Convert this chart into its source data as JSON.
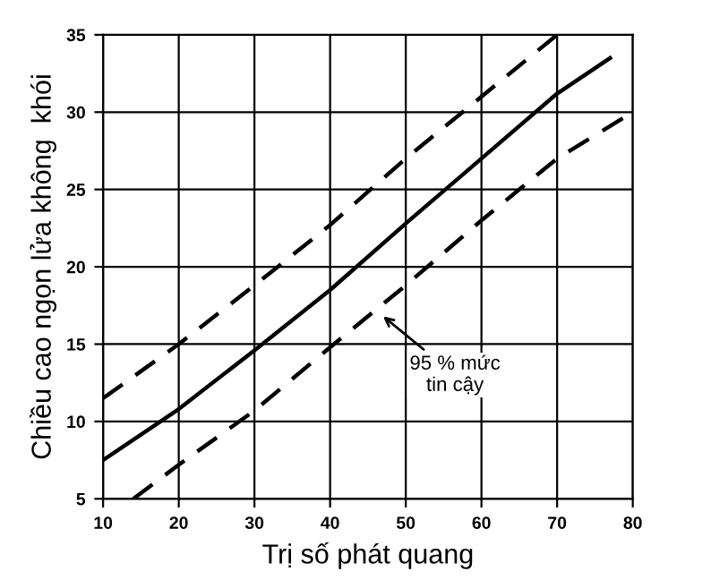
{
  "chart_data": {
    "type": "line",
    "xlabel": "Trị số phát quang",
    "ylabel": "Chiều cao ngọn lửa không  khói",
    "xlim": [
      10,
      80
    ],
    "ylim": [
      5,
      35
    ],
    "xticks": [
      10,
      20,
      30,
      40,
      50,
      60,
      70,
      80
    ],
    "yticks": [
      5,
      10,
      15,
      20,
      25,
      30,
      35
    ],
    "grid": true,
    "marker": "none",
    "series": [
      {
        "color": "#000000",
        "line_style": "solid",
        "x": [
          10,
          20,
          30,
          40,
          50,
          60,
          70,
          77
        ],
        "values": [
          7.5,
          10.8,
          14.6,
          18.5,
          22.8,
          27,
          31.2,
          33.5
        ]
      },
      {
        "color": "#000000",
        "line_style": "dashed",
        "x": [
          10,
          20,
          30,
          40,
          50,
          60,
          70
        ],
        "values": [
          11.5,
          15,
          18.8,
          22.7,
          27,
          31,
          35
        ]
      },
      {
        "color": "#000000",
        "line_style": "dashed",
        "x": [
          14,
          20,
          30,
          40,
          50,
          60,
          70,
          80
        ],
        "values": [
          5,
          7.2,
          10.7,
          14.8,
          18.8,
          23,
          27,
          30
        ]
      }
    ],
    "annotations": [
      {
        "text": "95 % mức\ntin cậy",
        "x": 46.5,
        "y": 17
      }
    ]
  }
}
